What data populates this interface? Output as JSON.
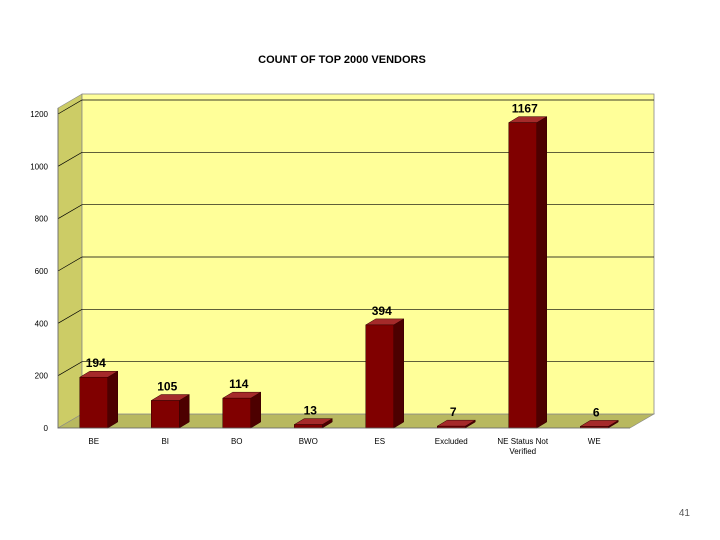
{
  "page": {
    "number": "41"
  },
  "chart_data": {
    "type": "bar",
    "title": "COUNT OF TOP 2000 VENDORS",
    "categories": [
      [
        "BE"
      ],
      [
        "BI"
      ],
      [
        "BO"
      ],
      [
        "BWO"
      ],
      [
        "ES"
      ],
      [
        "Excluded"
      ],
      [
        "NE Status Not",
        "Verified"
      ],
      [
        "WE"
      ]
    ],
    "values": [
      194,
      105,
      114,
      13,
      394,
      7,
      1167,
      6
    ],
    "yticks": [
      0,
      200,
      400,
      600,
      800,
      1000,
      1200
    ],
    "ytick_labels": [
      "0",
      "200",
      "400",
      "600",
      "800",
      "1000",
      "1200"
    ],
    "ylim": [
      0,
      1240
    ],
    "xlabel": "",
    "ylabel": "",
    "grid": true,
    "legend": "none",
    "three_d": true,
    "colors": {
      "plot_back": "#ffff99",
      "plot_side": "#cccc66",
      "plot_floor": "#b8b860",
      "bar_front": "#800000",
      "bar_side": "#4d0000",
      "bar_top": "#a52a2a",
      "grid": "#000000"
    }
  }
}
